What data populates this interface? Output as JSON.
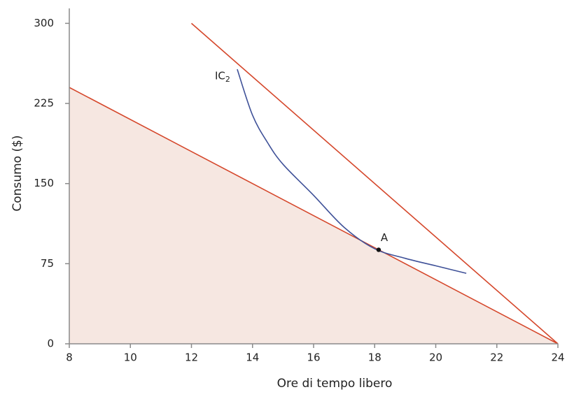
{
  "chart_data": {
    "type": "line",
    "xlabel": "Ore di tempo libero",
    "ylabel": "Consumo ($)",
    "xlim": [
      8,
      24
    ],
    "ylim": [
      0,
      314
    ],
    "xticks": [
      8,
      10,
      12,
      14,
      16,
      18,
      20,
      22,
      24
    ],
    "yticks": [
      0,
      75,
      150,
      225,
      300
    ],
    "grid": false,
    "series": [
      {
        "color": "#d5472b",
        "fill": "#f6e7e1",
        "x": [
          8,
          24
        ],
        "values": [
          240,
          0
        ]
      },
      {
        "color": "#d5472b",
        "x": [
          12,
          24
        ],
        "values": [
          300,
          0
        ]
      },
      {
        "label": "IC",
        "label_sub": "2",
        "color": "#3f5198",
        "x": [
          13.5,
          14,
          14.5,
          15,
          16,
          17,
          18,
          19,
          20,
          21
        ],
        "values": [
          257,
          214,
          188,
          168,
          139,
          109,
          89,
          80,
          73,
          66
        ]
      }
    ],
    "points": [
      {
        "label": "A",
        "x": 18.13,
        "y": 88
      }
    ]
  }
}
